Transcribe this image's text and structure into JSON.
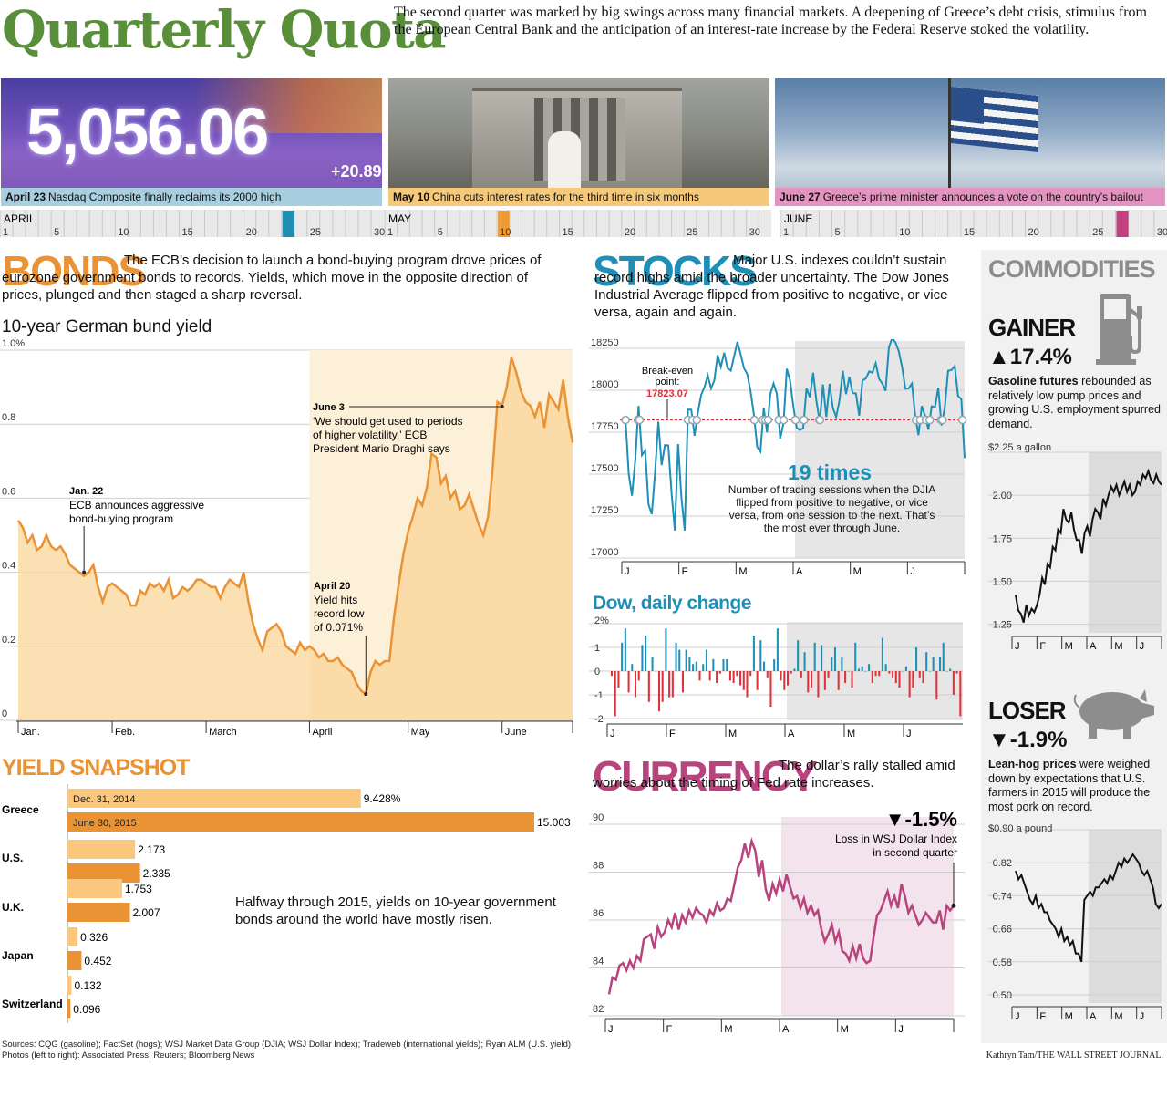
{
  "header": {
    "title": "Quarterly Quota",
    "intro": "The second quarter was marked by big swings across many financial markets. A deepening of Greece’s debt crisis, stimulus from the European Central Bank and the anticipation of an interest-rate increase by the Federal Reserve stoked the volatility."
  },
  "photos": [
    {
      "date": "April 23",
      "caption": "Nasdaq Composite finally reclaims its 2000 high",
      "board_value": "5,056.06",
      "board_change": "+20.89",
      "color": "#a8cfe0"
    },
    {
      "date": "May 10",
      "caption": "China cuts interest rates for the third time in six months",
      "color": "#f5c87a"
    },
    {
      "date": "June 27",
      "caption": "Greece’s prime minister announces a vote on the country’s bailout",
      "color": "#e493c0"
    }
  ],
  "timeline": {
    "months": [
      {
        "name": "APRIL",
        "days": 30,
        "ticks": [
          "1",
          "5",
          "10",
          "15",
          "20",
          "25",
          "30"
        ],
        "highlight_day": 23,
        "highlight_color": "#1d8fb0"
      },
      {
        "name": "MAY",
        "days": 31,
        "ticks": [
          "1",
          "5",
          "10",
          "15",
          "20",
          "25",
          "30"
        ],
        "highlight_day": 10,
        "highlight_color": "#ee9a36"
      },
      {
        "name": "JUNE",
        "days": 30,
        "ticks": [
          "1",
          "5",
          "10",
          "15",
          "20",
          "25",
          "30"
        ],
        "highlight_day": 27,
        "highlight_color": "#c2417f"
      }
    ]
  },
  "bonds": {
    "title": "BONDS",
    "text": "The ECB’s decision to launch a bond-buying program drove prices of eurozone government bonds to records. Yields, which move in the opposite direction of prices, plunged and then staged a sharp reversal.",
    "chart_title": "10-year German bund yield",
    "ann_jan_date": "Jan. 22",
    "ann_jan_text": "ECB announces aggressive bond-buying program",
    "ann_apr_date": "April 20",
    "ann_apr_l1": "Yield hits",
    "ann_apr_l2": "record low",
    "ann_apr_l3": "of 0.071%",
    "ann_jun_date": "June 3",
    "ann_jun_l1": "‘We should get used to periods",
    "ann_jun_l2": "of higher volatility,’ ECB",
    "ann_jun_l3": "President Mario Draghi says"
  },
  "yield_snapshot": {
    "title": "YIELD SNAPSHOT",
    "legend_a": "Dec. 31, 2014",
    "legend_b": "June 30, 2015",
    "note": "Halfway through 2015, yields on 10-year government bonds around the world have mostly risen."
  },
  "stocks": {
    "title": "STOCKS",
    "text": "Major U.S. indexes couldn’t sustain record highs amid the broader uncertainty. The Dow Jones Industrial Average flipped from positive to negative, or vice versa, again and again.",
    "breakeven_l1": "Break-even",
    "breakeven_l2": "point:",
    "breakeven_value": "17823.07",
    "times_big": "19 times",
    "times_text": "Number of trading sessions when the DJIA flipped from positive to negative, or vice versa, from one session to the next. That’s the most ever through June.",
    "daily_title": "Dow, daily change"
  },
  "currency": {
    "title": "CURRENCY",
    "text": "The dollar’s rally stalled amid worries about the timing of Fed rate increases.",
    "big": "▼-1.5%",
    "note_l1": "Loss in WSJ Dollar Index",
    "note_l2": "in second quarter"
  },
  "commodities": {
    "title": "COMMODITIES",
    "gainer_label": "GAINER",
    "gainer_value": "▲17.4%",
    "gainer_bold": "Gasoline futures",
    "gainer_text": "rebounded as relatively low pump prices and growing U.S. employment spurred demand.",
    "loser_label": "LOSER",
    "loser_value": "▼-1.9%",
    "loser_bold": "Lean-hog prices",
    "loser_text": "were weighed down by expectations that U.S. farmers in 2015 will produce the most pork on record."
  },
  "footer": {
    "sources": "Sources: CQG (gasoline); FactSet (hogs); WSJ Market Data Group (DJIA; WSJ Dollar Index); Tradeweb (international yields); Ryan ALM (U.S. yield)",
    "photos": "Photos (left to right): Associated Press; Reuters; Bloomberg News",
    "credit": "Kathryn Tam/THE WALL STREET JOURNAL."
  },
  "chart_data": [
    {
      "id": "bund",
      "type": "area",
      "title": "10-year German bund yield",
      "x_unit": "trading day (Jan 2 - Jun 30, 2015)",
      "x_labels": [
        "Jan.",
        "Feb.",
        "March",
        "April",
        "May",
        "June"
      ],
      "ylim": [
        0,
        1.0
      ],
      "y_ticks": [
        "0",
        "0.2",
        "0.4",
        "0.6",
        "0.8",
        "1.0%"
      ],
      "highlight_from_month": "April",
      "values": [
        0.54,
        0.52,
        0.48,
        0.5,
        0.46,
        0.47,
        0.5,
        0.47,
        0.46,
        0.47,
        0.45,
        0.42,
        0.41,
        0.4,
        0.39,
        0.4,
        0.42,
        0.36,
        0.32,
        0.36,
        0.37,
        0.36,
        0.35,
        0.34,
        0.31,
        0.31,
        0.35,
        0.34,
        0.37,
        0.36,
        0.37,
        0.35,
        0.38,
        0.33,
        0.34,
        0.36,
        0.35,
        0.36,
        0.38,
        0.38,
        0.37,
        0.36,
        0.36,
        0.33,
        0.36,
        0.38,
        0.37,
        0.36,
        0.4,
        0.32,
        0.26,
        0.22,
        0.19,
        0.24,
        0.25,
        0.26,
        0.24,
        0.2,
        0.19,
        0.18,
        0.21,
        0.19,
        0.2,
        0.19,
        0.17,
        0.18,
        0.16,
        0.16,
        0.17,
        0.15,
        0.14,
        0.13,
        0.1,
        0.08,
        0.071,
        0.13,
        0.16,
        0.15,
        0.16,
        0.16,
        0.28,
        0.37,
        0.45,
        0.51,
        0.55,
        0.6,
        0.58,
        0.63,
        0.72,
        0.71,
        0.64,
        0.66,
        0.6,
        0.62,
        0.57,
        0.58,
        0.61,
        0.57,
        0.53,
        0.5,
        0.55,
        0.68,
        0.86,
        0.85,
        0.9,
        0.98,
        0.94,
        0.89,
        0.86,
        0.85,
        0.82,
        0.86,
        0.79,
        0.88,
        0.86,
        0.84,
        0.92,
        0.82,
        0.75
      ],
      "annotations": [
        {
          "label": "Jan. 22",
          "index": 14,
          "value": 0.4
        },
        {
          "label": "April 20",
          "index": 74,
          "value": 0.071
        },
        {
          "label": "June 3",
          "index": 103,
          "value": 0.85
        }
      ]
    },
    {
      "id": "yields",
      "type": "bar",
      "title": "YIELD SNAPSHOT",
      "categories": [
        "Greece",
        "U.S.",
        "U.K.",
        "Japan",
        "Switzerland"
      ],
      "series": [
        {
          "name": "Dec. 31, 2014",
          "values": [
            9.428,
            2.173,
            1.753,
            0.326,
            0.132
          ],
          "labels": [
            "9.428%",
            "2.173",
            "1.753",
            "0.326",
            "0.132"
          ],
          "color": "#f9c77d"
        },
        {
          "name": "June 30, 2015",
          "values": [
            15.003,
            2.335,
            2.007,
            0.452,
            0.096
          ],
          "labels": [
            "15.003",
            "2.335",
            "2.007",
            "0.452",
            "0.096"
          ],
          "color": "#ea9335"
        }
      ]
    },
    {
      "id": "djia",
      "type": "line",
      "title": "DJIA",
      "x_labels": [
        "J",
        "F",
        "M",
        "A",
        "M",
        "J"
      ],
      "ylim": [
        17000,
        18250
      ],
      "y_ticks": [
        "17000",
        "17250",
        "17500",
        "17750",
        "18000",
        "18250"
      ],
      "breakeven": 17823.07,
      "highlight_from_month": "A",
      "values": [
        17832,
        17501,
        17371,
        17584,
        17907,
        17613,
        17640,
        17320,
        17262,
        17511,
        17813,
        17554,
        17673,
        17672,
        17387,
        17164,
        17679,
        17361,
        17164,
        17885,
        17884,
        17729,
        17868,
        17973,
        18019,
        18089,
        18011,
        18058,
        18209,
        18140,
        18224,
        18132,
        18117,
        18203,
        18288,
        18214,
        18132,
        18096,
        17995,
        17856,
        17662,
        17635,
        17895,
        17749,
        17977,
        18040,
        17979,
        17712,
        17803,
        18128,
        18057,
        17902,
        17776,
        17763,
        17774,
        18011,
        17958,
        18105,
        17935,
        17811,
        18034,
        17841,
        18038,
        17895,
        17840,
        17941,
        18116,
        17977,
        18080,
        17983,
        17981,
        17849,
        18058,
        18070,
        18112,
        18105,
        18161,
        18068,
        18040,
        17996,
        18253,
        18312,
        18285,
        18232,
        18139,
        18010,
        18011,
        18040,
        17849,
        17732,
        17906,
        17848,
        17765,
        17905,
        17899,
        18015,
        17790,
        17898,
        18116,
        18120,
        18144,
        17966,
        17947,
        17596
      ]
    },
    {
      "id": "dow-daily",
      "type": "bar",
      "title": "Dow, daily change",
      "x_labels": [
        "J",
        "F",
        "M",
        "A",
        "M",
        "J"
      ],
      "ylim": [
        -2,
        2
      ],
      "y_ticks": [
        "-2",
        "-1",
        "0",
        "1",
        "2%"
      ],
      "values": [
        -0.2,
        -1.9,
        -0.7,
        1.2,
        1.8,
        -0.9,
        0.3,
        -1.1,
        -0.4,
        1.1,
        1.5,
        -1.3,
        0.6,
        0.0,
        -1.7,
        -1.3,
        1.8,
        -1.1,
        -1.1,
        1.2,
        0.9,
        -0.9,
        0.9,
        0.6,
        0.3,
        0.4,
        -0.4,
        0.3,
        0.9,
        -0.4,
        0.5,
        -0.5,
        -0.1,
        0.5,
        0.5,
        -0.4,
        -0.5,
        -0.2,
        -0.6,
        -0.8,
        -1.1,
        -0.2,
        1.5,
        -0.8,
        1.3,
        0.4,
        -0.3,
        -1.5,
        0.5,
        1.8,
        -0.4,
        -0.8,
        -0.6,
        -0.1,
        0.1,
        1.3,
        -0.3,
        0.8,
        -0.9,
        -0.7,
        1.2,
        -1.1,
        1.1,
        -0.8,
        -0.3,
        0.6,
        1.0,
        -0.8,
        0.6,
        -0.5,
        0.0,
        -0.7,
        1.2,
        0.1,
        0.2,
        0.0,
        0.3,
        -0.5,
        -0.2,
        -0.2,
        1.4,
        0.3,
        -0.1,
        -0.3,
        -0.5,
        -0.7,
        0.0,
        0.2,
        -1.1,
        -0.7,
        1.0,
        -0.3,
        -0.5,
        0.8,
        0.0,
        0.6,
        -1.2,
        0.6,
        1.2,
        0.0,
        0.1,
        -1.0,
        -0.1,
        -1.9
      ]
    },
    {
      "id": "dollar",
      "type": "line",
      "title": "WSJ Dollar Index",
      "x_labels": [
        "J",
        "F",
        "M",
        "A",
        "M",
        "J"
      ],
      "ylim": [
        82,
        90
      ],
      "y_ticks": [
        "82",
        "84",
        "86",
        "88",
        "90"
      ],
      "highlight_from_month": "A",
      "values": [
        82.9,
        83.6,
        83.5,
        84.1,
        84.2,
        83.9,
        84.3,
        84.0,
        84.5,
        84.3,
        85.2,
        85.3,
        85.4,
        84.8,
        85.7,
        85.3,
        85.5,
        86.0,
        85.7,
        86.3,
        85.6,
        86.2,
        85.9,
        86.4,
        86.1,
        86.5,
        86.3,
        86.2,
        85.9,
        86.4,
        86.2,
        86.7,
        86.4,
        86.5,
        86.9,
        86.8,
        87.5,
        88.2,
        88.5,
        89.2,
        88.6,
        89.3,
        88.9,
        87.8,
        88.5,
        87.3,
        86.8,
        87.5,
        87.1,
        87.7,
        87.2,
        87.9,
        87.4,
        86.9,
        87.0,
        86.5,
        86.9,
        86.3,
        86.6,
        86.2,
        86.4,
        85.6,
        85.1,
        85.4,
        85.8,
        85.1,
        85.5,
        84.7,
        84.6,
        84.3,
        84.9,
        84.4,
        85.0,
        84.4,
        84.2,
        84.3,
        85.3,
        86.2,
        86.4,
        86.8,
        87.2,
        86.6,
        87.0,
        86.5,
        87.5,
        87.0,
        86.3,
        86.6,
        86.2,
        85.8,
        86.0,
        86.3,
        86.1,
        85.9,
        85.9,
        86.4,
        85.6,
        86.6,
        86.4,
        86.6
      ]
    },
    {
      "id": "gasoline",
      "type": "line",
      "title": "$2.25 a gallon",
      "x_labels": [
        "J",
        "F",
        "M",
        "A",
        "M",
        "J"
      ],
      "ylim": [
        1.2,
        2.25
      ],
      "y_ticks": [
        "1.25",
        "1.50",
        "1.75",
        "2.00",
        "$2.25 a gallon"
      ],
      "highlight_from_month": "A",
      "values": [
        1.42,
        1.33,
        1.31,
        1.26,
        1.36,
        1.3,
        1.34,
        1.32,
        1.36,
        1.42,
        1.52,
        1.48,
        1.6,
        1.58,
        1.7,
        1.68,
        1.8,
        1.78,
        1.92,
        1.86,
        1.84,
        1.9,
        1.8,
        1.74,
        1.74,
        1.66,
        1.78,
        1.82,
        1.76,
        1.86,
        1.92,
        1.9,
        1.86,
        1.98,
        1.94,
        2.0,
        2.05,
        2.02,
        2.06,
        2.0,
        2.04,
        2.08,
        2.02,
        2.06,
        2.0,
        2.02,
        2.08,
        2.06,
        2.12,
        2.1,
        2.14,
        2.09,
        2.07,
        2.12,
        2.08,
        2.06
      ]
    },
    {
      "id": "hogs",
      "type": "line",
      "title": "$0.90 a pound",
      "x_labels": [
        "J",
        "F",
        "M",
        "A",
        "M",
        "J"
      ],
      "ylim": [
        0.48,
        0.9
      ],
      "y_ticks": [
        "0.50",
        "0.58",
        "0.66",
        "0.74",
        "0.82",
        "$0.90 a pound"
      ],
      "highlight_from_month": "A",
      "values": [
        0.8,
        0.78,
        0.79,
        0.77,
        0.75,
        0.73,
        0.72,
        0.74,
        0.71,
        0.72,
        0.7,
        0.7,
        0.68,
        0.67,
        0.66,
        0.64,
        0.66,
        0.63,
        0.64,
        0.62,
        0.63,
        0.6,
        0.6,
        0.58,
        0.73,
        0.74,
        0.75,
        0.74,
        0.76,
        0.76,
        0.77,
        0.78,
        0.77,
        0.79,
        0.78,
        0.8,
        0.82,
        0.81,
        0.83,
        0.82,
        0.83,
        0.84,
        0.83,
        0.82,
        0.8,
        0.79,
        0.8,
        0.78,
        0.76,
        0.72,
        0.71,
        0.72
      ]
    }
  ]
}
